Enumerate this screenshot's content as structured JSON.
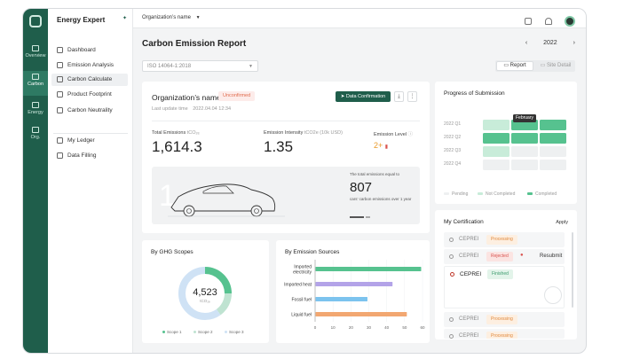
{
  "rail": {
    "items": [
      {
        "label": "Overview",
        "active": false
      },
      {
        "label": "Carbon",
        "active": true
      },
      {
        "label": "Energy",
        "active": false
      },
      {
        "label": "Org.",
        "active": false
      }
    ]
  },
  "sidebar": {
    "brand": "Energy Expert",
    "items": [
      {
        "label": "Dashboard"
      },
      {
        "label": "Emission Analysis"
      },
      {
        "label": "Carbon Calculate",
        "active": true
      },
      {
        "label": "Product Footprint"
      },
      {
        "label": "Carbon Neutrality"
      },
      {
        "label": "My Ledger"
      },
      {
        "label": "Data Filling"
      }
    ]
  },
  "topbar": {
    "org_name": "Organization’s name"
  },
  "header": {
    "title": "Carbon Emission Report",
    "year": "2022",
    "standard": "ISO 14064-1:2018",
    "tab_report": "Report",
    "tab_site": "Site Detail"
  },
  "org_card": {
    "name": "Organization’s name",
    "status": "Unconfirmed",
    "confirm_button": "Data Confirmation",
    "update_label": "Last update time",
    "update_time": "2022.04.04 12:34",
    "total_label": "Total Emissions",
    "total_unit": "tCO₂ₑ",
    "total_value": "1,614.3",
    "intensity_label": "Emission Intensity",
    "intensity_unit": "tCO2e (10k USD)",
    "intensity_value": "1.35",
    "level_label": "Emission Level",
    "level_value": "2+",
    "hero_text": "The total emissions equal to",
    "hero_number": "807",
    "hero_sub": "cars’ carbon emissions over 1 year",
    "accent": "#1f5e4b"
  },
  "progress": {
    "title": "Progress of Submission",
    "tooltip": "February",
    "quarters": [
      "2022 Q1",
      "2022 Q2",
      "2022 Q3",
      "2022 Q4"
    ],
    "grid": [
      [
        "not_completed",
        "completed",
        "completed"
      ],
      [
        "completed",
        "completed",
        "completed"
      ],
      [
        "not_completed",
        "pending",
        "pending"
      ],
      [
        "pending",
        "pending",
        "pending"
      ]
    ],
    "legend": {
      "pending": "Pending",
      "not_completed": "Not Completed",
      "completed": "Completed"
    },
    "colors": {
      "completed": "#56c28f",
      "not_completed": "#c8ecd9",
      "pending": "#eef0f1"
    }
  },
  "certification": {
    "title": "My Certification",
    "apply": "Apply",
    "rows": [
      {
        "name": "CEPREI",
        "status": "Processing",
        "type": "proc"
      },
      {
        "name": "CEPREI",
        "status": "Rejected",
        "type": "rej",
        "action": "Resubmit"
      },
      {
        "name": "CEPREI",
        "status": "Finished",
        "type": "fin"
      },
      {
        "name": "CEPREI",
        "status": "Processing",
        "type": "proc"
      },
      {
        "name": "CEPREI",
        "status": "Processing",
        "type": "proc"
      }
    ]
  },
  "chart_data": [
    {
      "type": "pie",
      "title": "By GHG Scopes",
      "center_value": "4,523",
      "center_unit": "tCO₂ₑ",
      "labels": [
        "Scope 1",
        "Scope 2",
        "Scope 3"
      ],
      "values": [
        25,
        15,
        60
      ],
      "colors": [
        "#56c28f",
        "#bfe3d1",
        "#cfe2f5"
      ]
    },
    {
      "type": "bar",
      "orientation": "horizontal",
      "title": "By Emission Sources",
      "categories": [
        "Imported electricity",
        "Imported heat",
        "Fossil fuel",
        "Liquid fuel"
      ],
      "values": [
        59,
        43,
        29,
        51
      ],
      "colors": [
        "#56c28f",
        "#b3a3e8",
        "#7cc3ee",
        "#f2a771"
      ],
      "xlim": [
        0,
        60
      ],
      "xticks": [
        "0",
        "10",
        "20",
        "30",
        "40",
        "50",
        "60"
      ]
    }
  ]
}
